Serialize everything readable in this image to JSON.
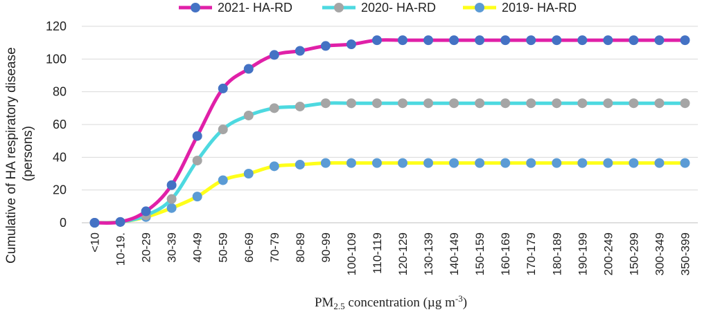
{
  "chart_data": {
    "type": "line",
    "title": "",
    "ylabel_line1": "Cumulative of HA respiratory disease",
    "ylabel_line2": "(persons)",
    "xlabel": {
      "pre": "PM",
      "sub": "2.5",
      "mid": " concentration (µg m",
      "sup": "-3",
      "post": ")"
    },
    "ylim": [
      0,
      120
    ],
    "yticks": [
      "0",
      "20",
      "40",
      "60",
      "80",
      "100",
      "120"
    ],
    "grid": true,
    "legend_position": "top",
    "categories": [
      "<10",
      "10-19.",
      "20-29",
      "30-39",
      "40-49",
      "50-59",
      "60-69",
      "70-79",
      "80-89",
      "90-99",
      "100-109",
      "110-119",
      "120-129",
      "130-139",
      "140-149",
      "150-159",
      "160-169",
      "170-179",
      "180-189",
      "190-199",
      "200-249",
      "150-299",
      "300-349",
      "350-399"
    ],
    "series": [
      {
        "name": "2021- HA-RD",
        "line_color": "#e020a8",
        "marker_color": "#4472c4",
        "values": [
          0,
          0.5,
          7,
          23,
          53,
          82,
          94,
          102.5,
          105,
          108,
          109,
          111.5,
          111.5,
          111.5,
          111.5,
          111.5,
          111.5,
          111.5,
          111.5,
          111.5,
          111.5,
          111.5,
          111.5,
          111.5
        ]
      },
      {
        "name": "2020- HA-RD",
        "line_color": "#4dd9e0",
        "marker_color": "#a5a5a5",
        "values": [
          0,
          0.5,
          4.5,
          14.5,
          38,
          57,
          65.5,
          70,
          71,
          73,
          73,
          73,
          73,
          73,
          73,
          73,
          73,
          73,
          73,
          73,
          73,
          73,
          73,
          73
        ]
      },
      {
        "name": "2019- HA-RD",
        "line_color": "#ffff1a",
        "marker_color": "#5b9bd5",
        "values": [
          0,
          0.5,
          3.5,
          9,
          16,
          26,
          30,
          34.5,
          35.5,
          36.5,
          36.5,
          36.5,
          36.5,
          36.5,
          36.5,
          36.5,
          36.5,
          36.5,
          36.5,
          36.5,
          36.5,
          36.5,
          36.5,
          36.5
        ]
      }
    ]
  }
}
